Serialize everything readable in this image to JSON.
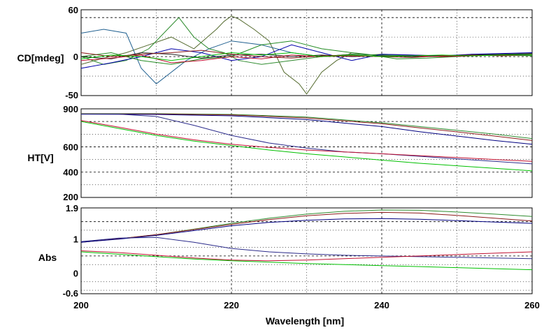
{
  "chart_data": {
    "type": "line",
    "xlabel": "Wavelength [nm]",
    "x_ticks": [
      "200",
      "220",
      "240",
      "260"
    ],
    "xlim": [
      200,
      260
    ],
    "panels": [
      {
        "ylabel": "CD[mdeg]",
        "ylim": [
          -50,
          60
        ],
        "y_ticks": [
          {
            "value": 60,
            "label": "60"
          },
          {
            "value": 0,
            "label": "0"
          },
          {
            "value": -50,
            "label": "-50"
          }
        ],
        "major_gridlines": [
          50,
          0
        ],
        "minor_gridlines": [
          25,
          -25
        ],
        "series": [
          {
            "color": "#556b2f",
            "x": [
              200,
              203,
              206,
              209,
              212,
              215,
              218,
              219,
              220,
              221,
              223,
              225,
              227,
              229,
              230,
              232,
              234,
              236,
              238,
              240,
              244,
              248,
              252,
              256,
              260
            ],
            "y": [
              -10,
              -2,
              5,
              15,
              25,
              10,
              35,
              45,
              52,
              48,
              35,
              20,
              -20,
              -35,
              -48,
              -20,
              -5,
              5,
              2,
              3,
              2,
              1,
              2,
              2,
              3
            ]
          },
          {
            "color": "#1f5f8f",
            "x": [
              200,
              203,
              206,
              208,
              210,
              212,
              214,
              217,
              220,
              224,
              228,
              232,
              236,
              240,
              244,
              248,
              252,
              256,
              260
            ],
            "y": [
              30,
              35,
              30,
              -15,
              -35,
              -20,
              -5,
              10,
              20,
              15,
              5,
              0,
              3,
              2,
              1,
              0,
              2,
              3,
              2
            ]
          },
          {
            "color": "#2e8b2e",
            "x": [
              200,
              203,
              206,
              209,
              211,
              213,
              215,
              217,
              219,
              221,
              224,
              228,
              232,
              236,
              240,
              244,
              248,
              252,
              256,
              260
            ],
            "y": [
              0,
              -10,
              -5,
              10,
              30,
              50,
              25,
              10,
              5,
              -5,
              -10,
              -5,
              0,
              3,
              2,
              1,
              0,
              3,
              2,
              1
            ]
          },
          {
            "color": "#0000aa",
            "x": [
              200,
              204,
              208,
              212,
              216,
              220,
              224,
              228,
              232,
              236,
              240,
              244,
              248,
              252,
              256,
              260
            ],
            "y": [
              -15,
              -8,
              0,
              10,
              5,
              -5,
              0,
              15,
              5,
              -5,
              3,
              2,
              1,
              3,
              4,
              5
            ]
          },
          {
            "color": "#228b22",
            "x": [
              200,
              204,
              208,
              212,
              216,
              220,
              224,
              228,
              232,
              236,
              238,
              242,
              246,
              250,
              254,
              258,
              260
            ],
            "y": [
              0,
              5,
              -5,
              -10,
              -3,
              0,
              15,
              20,
              10,
              5,
              3,
              -3,
              -2,
              0,
              2,
              3,
              4
            ]
          },
          {
            "color": "#222222",
            "x": [
              200,
              204,
              208,
              212,
              216,
              220,
              224,
              228,
              232,
              236,
              240,
              244,
              248,
              252,
              256,
              260
            ],
            "y": [
              0,
              -3,
              5,
              3,
              -2,
              2,
              3,
              0,
              2,
              0,
              1,
              0,
              1,
              2,
              3,
              4
            ]
          },
          {
            "color": "#c01030",
            "x": [
              200,
              204,
              208,
              212,
              216,
              220,
              224,
              228,
              232,
              236,
              240,
              244,
              248,
              252,
              256,
              260
            ],
            "y": [
              -5,
              -2,
              2,
              -8,
              -5,
              0,
              -3,
              2,
              0,
              1,
              0,
              1,
              0,
              1,
              2,
              2
            ]
          },
          {
            "color": "#8b1a1a",
            "x": [
              200,
              204,
              208,
              212,
              216,
              220,
              224,
              228,
              232,
              236,
              240,
              244,
              248,
              252,
              256,
              260
            ],
            "y": [
              5,
              0,
              3,
              5,
              8,
              3,
              0,
              -2,
              1,
              2,
              0,
              -1,
              1,
              2,
              1,
              2
            ]
          },
          {
            "color": "#00c000",
            "x": [
              200,
              204,
              208,
              212,
              216,
              220,
              224,
              228,
              232,
              236,
              240,
              244,
              248,
              252,
              256,
              260
            ],
            "y": [
              -3,
              2,
              0,
              -5,
              0,
              5,
              2,
              5,
              0,
              2,
              0,
              1,
              2,
              1,
              2,
              2
            ]
          }
        ]
      },
      {
        "ylabel": "HT[V]",
        "ylim": [
          200,
          900
        ],
        "y_ticks": [
          {
            "value": 900,
            "label": "900"
          },
          {
            "value": 600,
            "label": "600"
          },
          {
            "value": 400,
            "label": "400"
          },
          {
            "value": 200,
            "label": "200"
          }
        ],
        "major_gridlines": [
          800,
          600,
          400
        ],
        "minor_gridlines": [
          700,
          500,
          300
        ],
        "series": [
          {
            "color": "#2e8b2e",
            "x": [
              200,
              210,
              220,
              230,
              240,
              245,
              250,
              255,
              260
            ],
            "y": [
              862,
              862,
              856,
              835,
              790,
              760,
              730,
              700,
              665
            ]
          },
          {
            "color": "#8b1a1a",
            "x": [
              200,
              210,
              220,
              230,
              240,
              245,
              250,
              255,
              260
            ],
            "y": [
              860,
              859,
              852,
              828,
              782,
              750,
              718,
              685,
              650
            ]
          },
          {
            "color": "#000080",
            "x": [
              200,
              210,
              220,
              230,
              240,
              245,
              250,
              255,
              260
            ],
            "y": [
              858,
              856,
              845,
              815,
              760,
              720,
              685,
              650,
              620
            ]
          },
          {
            "color": "#2a2a8a",
            "x": [
              200,
              205,
              210,
              215,
              220,
              225,
              230,
              235,
              240,
              245,
              250,
              255,
              260
            ],
            "y": [
              858,
              858,
              840,
              770,
              690,
              630,
              590,
              560,
              545,
              525,
              505,
              485,
              465
            ]
          },
          {
            "color": "#c01030",
            "x": [
              200,
              205,
              210,
              215,
              220,
              225,
              230,
              235,
              240,
              245,
              250,
              255,
              260
            ],
            "y": [
              808,
              755,
              700,
              655,
              620,
              595,
              575,
              560,
              545,
              530,
              515,
              500,
              485
            ]
          },
          {
            "color": "#00c000",
            "x": [
              200,
              205,
              210,
              215,
              220,
              225,
              230,
              235,
              240,
              245,
              250,
              255,
              260
            ],
            "y": [
              800,
              745,
              690,
              645,
              610,
              575,
              545,
              520,
              495,
              470,
              450,
              430,
              410
            ]
          }
        ]
      },
      {
        "ylabel": "Abs",
        "ylim": [
          -0.6,
          1.9
        ],
        "y_ticks": [
          {
            "value": 1.9,
            "label": "1.9"
          },
          {
            "value": 1,
            "label": "1"
          },
          {
            "value": 0,
            "label": "0"
          },
          {
            "value": -0.6,
            "label": "-0.6"
          }
        ],
        "major_gridlines": [
          1.5,
          0.5
        ],
        "minor_gridlines": [
          1.25,
          0.75,
          0.25,
          -0.25,
          -0.5
        ],
        "series": [
          {
            "color": "#2e8b2e",
            "x": [
              200,
              205,
              210,
              215,
              220,
              225,
              230,
              235,
              240,
              245,
              250,
              255,
              260
            ],
            "y": [
              0.9,
              1.0,
              1.12,
              1.28,
              1.45,
              1.6,
              1.72,
              1.8,
              1.84,
              1.83,
              1.78,
              1.72,
              1.65
            ]
          },
          {
            "color": "#8b1a1a",
            "x": [
              200,
              205,
              210,
              215,
              220,
              225,
              230,
              235,
              240,
              245,
              250,
              255,
              260
            ],
            "y": [
              0.9,
              1.0,
              1.12,
              1.27,
              1.42,
              1.56,
              1.67,
              1.74,
              1.77,
              1.75,
              1.68,
              1.6,
              1.52
            ]
          },
          {
            "color": "#000080",
            "x": [
              200,
              205,
              210,
              215,
              220,
              225,
              230,
              235,
              240,
              245,
              250,
              255,
              260
            ],
            "y": [
              0.9,
              0.99,
              1.1,
              1.24,
              1.38,
              1.48,
              1.54,
              1.58,
              1.59,
              1.57,
              1.53,
              1.49,
              1.45
            ]
          },
          {
            "color": "#2a2a8a",
            "x": [
              200,
              205,
              210,
              215,
              220,
              225,
              230,
              235,
              240,
              245,
              250,
              255,
              260
            ],
            "y": [
              0.92,
              1.02,
              1.04,
              0.9,
              0.72,
              0.62,
              0.56,
              0.52,
              0.5,
              0.48,
              0.46,
              0.44,
              0.42
            ]
          },
          {
            "color": "#c01030",
            "x": [
              200,
              205,
              210,
              215,
              220,
              225,
              230,
              235,
              240,
              245,
              250,
              255,
              260
            ],
            "y": [
              0.65,
              0.6,
              0.52,
              0.44,
              0.38,
              0.36,
              0.38,
              0.42,
              0.46,
              0.5,
              0.54,
              0.58,
              0.62
            ]
          },
          {
            "color": "#00c000",
            "x": [
              200,
              205,
              210,
              215,
              220,
              225,
              230,
              235,
              240,
              245,
              250,
              255,
              260
            ],
            "y": [
              0.62,
              0.55,
              0.48,
              0.41,
              0.36,
              0.32,
              0.28,
              0.25,
              0.22,
              0.19,
              0.16,
              0.13,
              0.1
            ]
          }
        ]
      }
    ]
  }
}
